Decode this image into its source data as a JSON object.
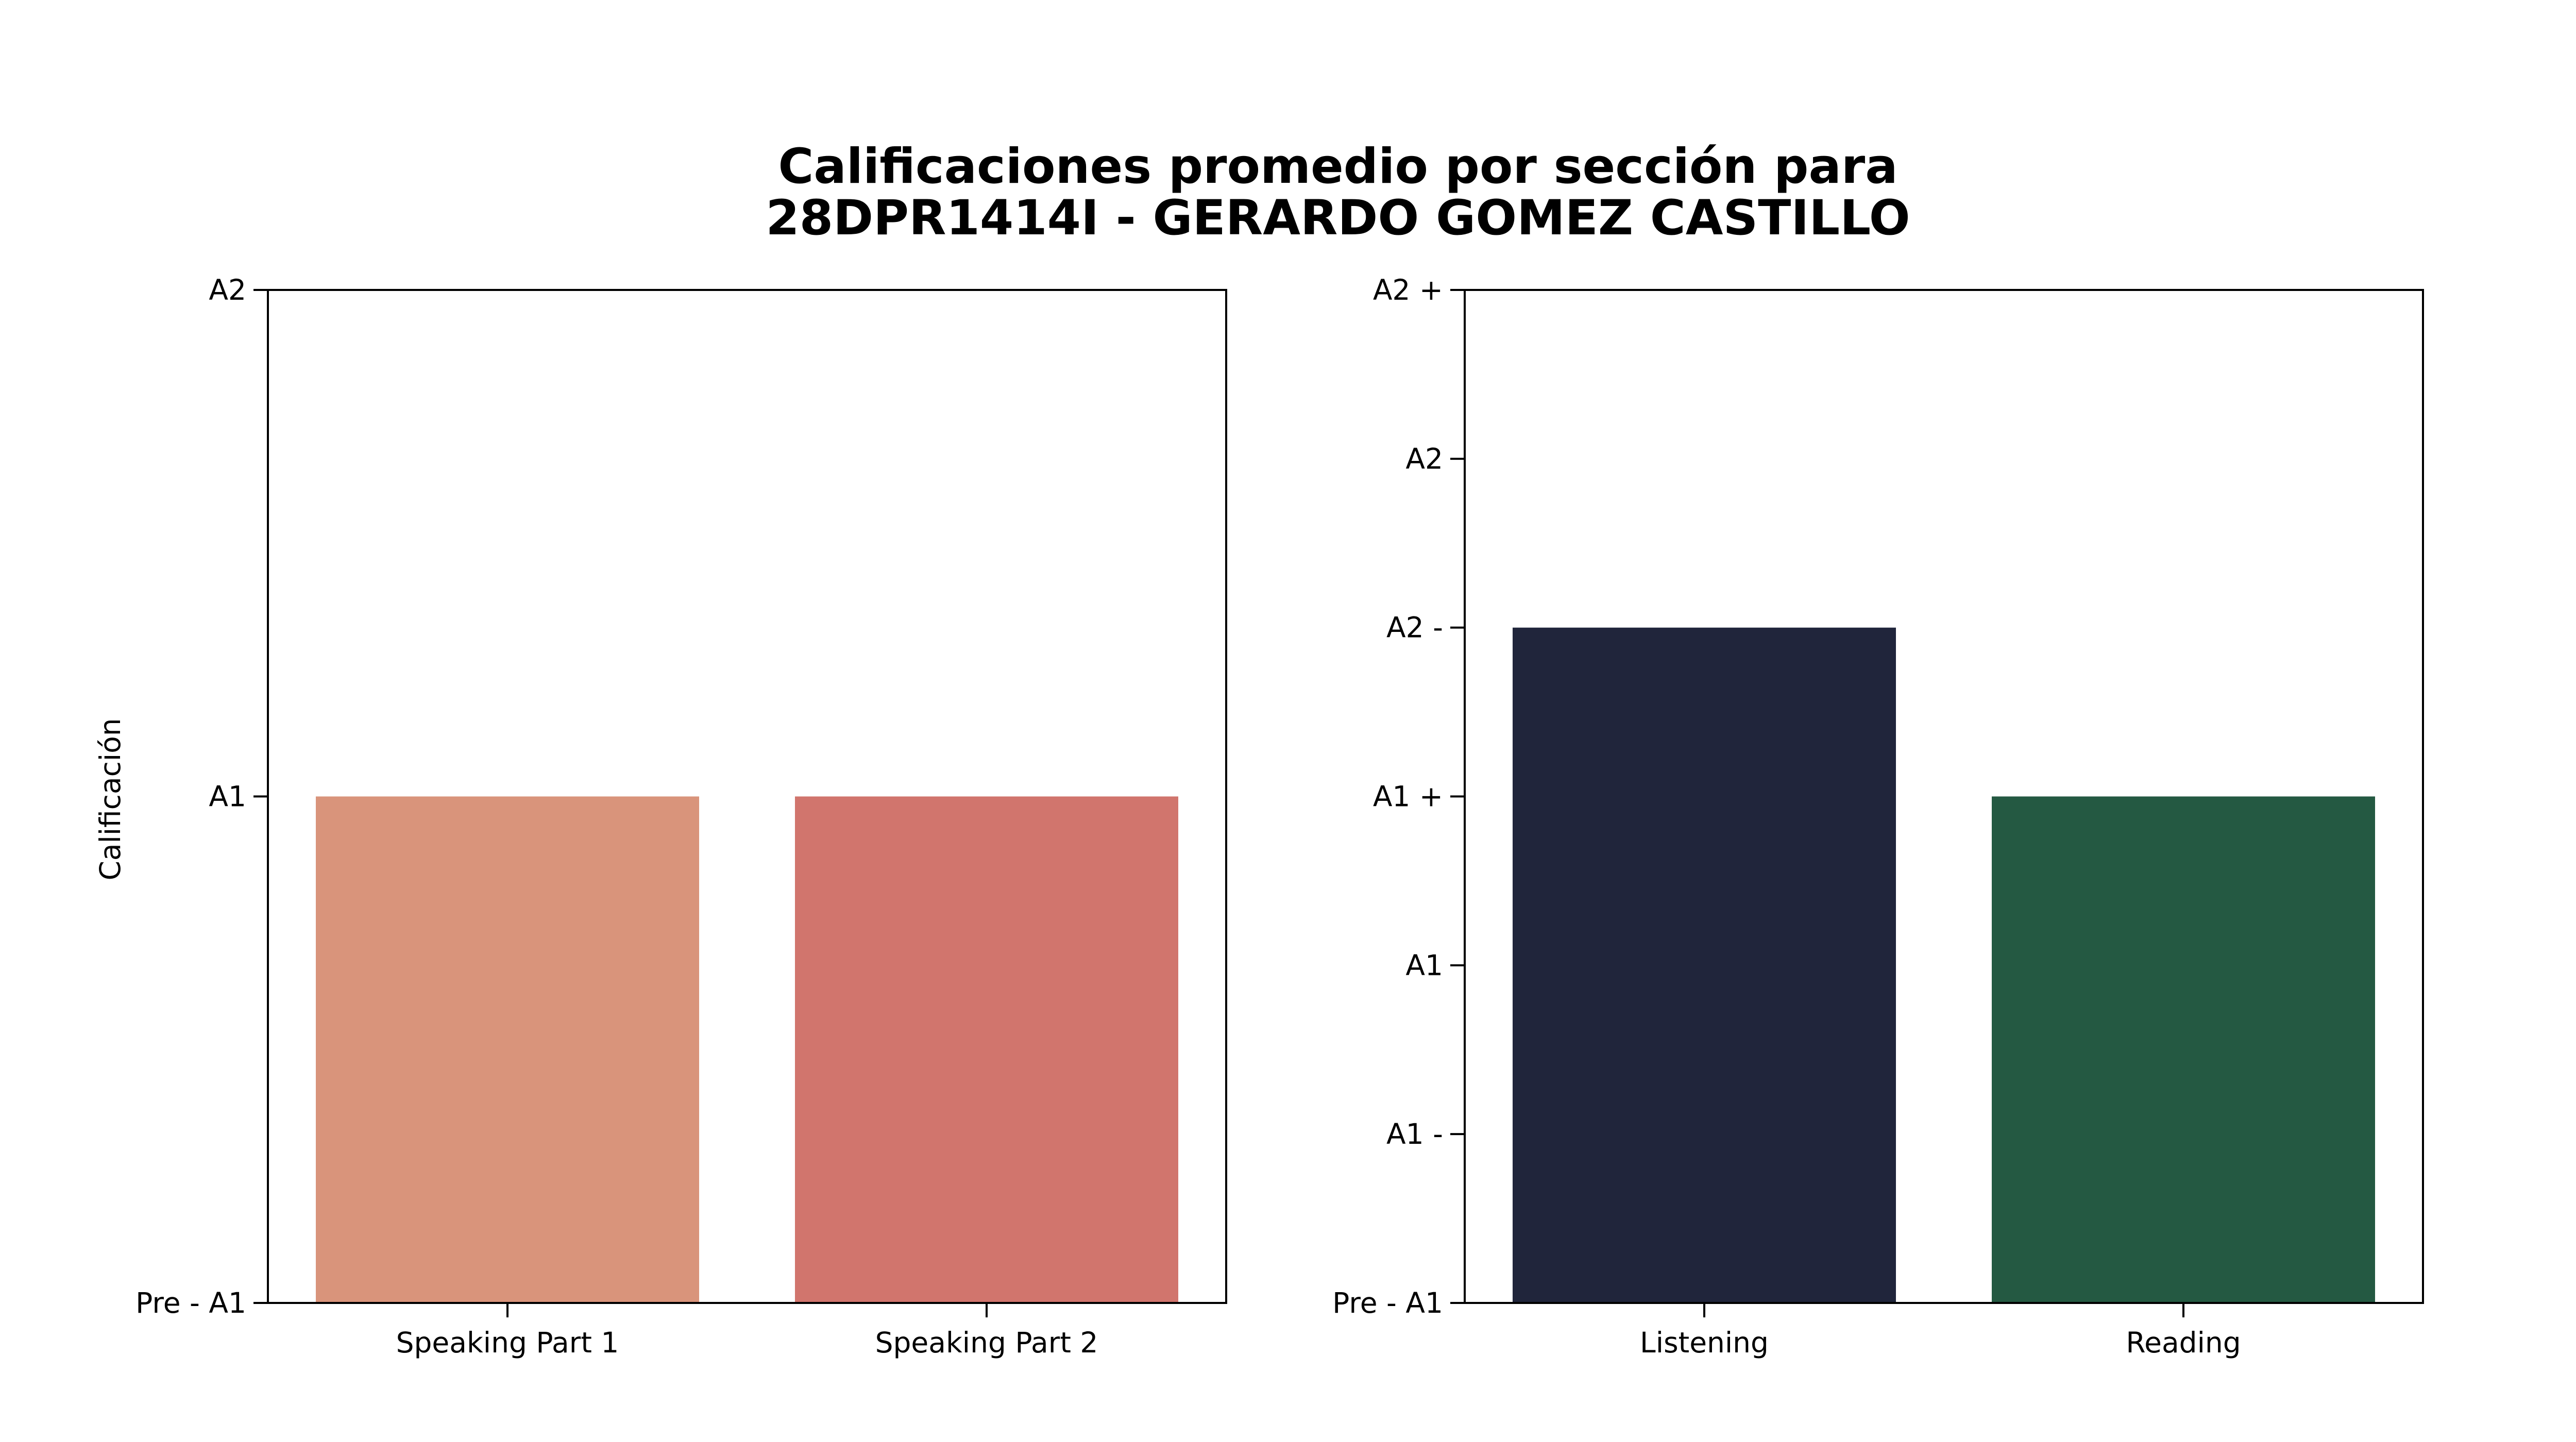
{
  "title_lines": [
    "Calificaciones promedio por sección para",
    "28DPR1414I - GERARDO GOMEZ CASTILLO"
  ],
  "chart_data": [
    {
      "type": "bar",
      "ylabel": "Calificación",
      "xlabel": "",
      "categories": [
        "Speaking Part 1",
        "Speaking Part 2"
      ],
      "values": [
        1,
        1
      ],
      "colors": [
        "#d9947b",
        "#d1756d"
      ],
      "ylim": [
        0,
        2
      ],
      "yticks": [
        0,
        1,
        2
      ],
      "yticklabels": [
        "Pre - A1",
        "A1",
        "A2"
      ],
      "grid": false
    },
    {
      "type": "bar",
      "ylabel": "",
      "xlabel": "",
      "categories": [
        "Listening",
        "Reading"
      ],
      "values": [
        4,
        3
      ],
      "colors": [
        "#20253b",
        "#245942"
      ],
      "ylim": [
        0,
        6
      ],
      "yticks": [
        0,
        1,
        2,
        3,
        4,
        5,
        6
      ],
      "yticklabels": [
        "Pre - A1",
        "A1 -",
        "A1",
        "A1 +",
        "A2 -",
        "A2",
        "A2 +"
      ],
      "grid": false
    }
  ]
}
